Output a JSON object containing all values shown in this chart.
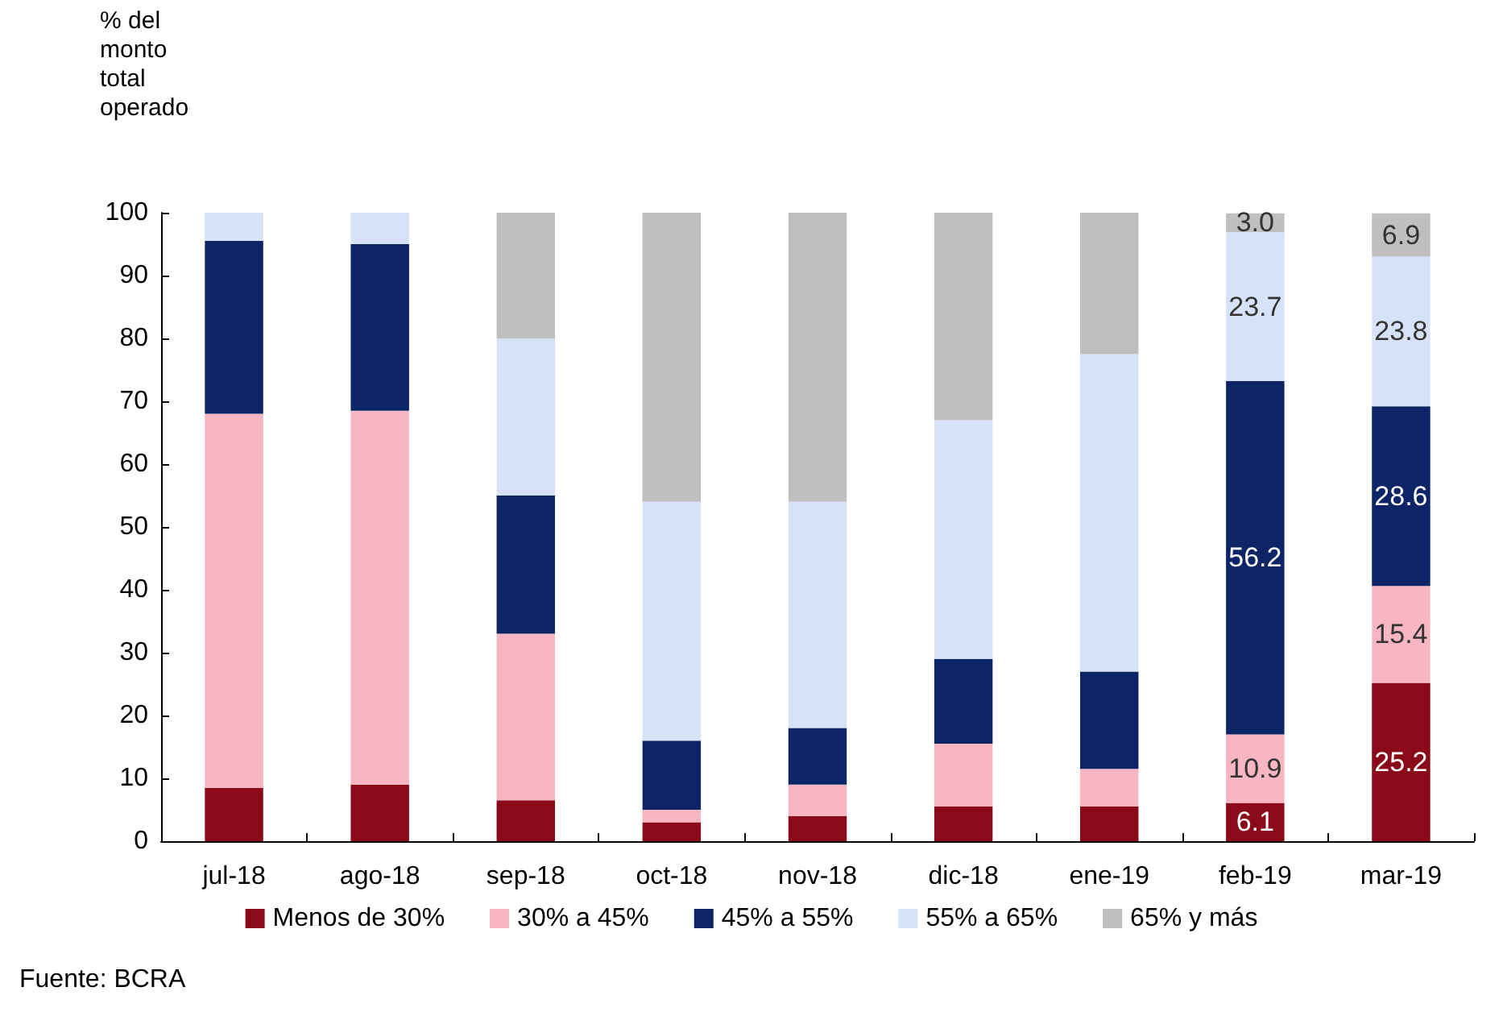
{
  "chart_data": {
    "type": "bar",
    "stacked": true,
    "ylabel": "% del\nmonto\ntotal\noperado",
    "annotations": [
      "Fuente: BCRA"
    ],
    "categories": [
      "jul-18",
      "ago-18",
      "sep-18",
      "oct-18",
      "nov-18",
      "dic-18",
      "ene-19",
      "feb-19",
      "mar-19"
    ],
    "series": [
      {
        "name": "Menos de 30%",
        "color": "#8b0a1a",
        "values": [
          8.5,
          9,
          6.5,
          3,
          4,
          5.5,
          5.5,
          6.1,
          25.2
        ],
        "value_labels": [
          null,
          null,
          null,
          null,
          null,
          null,
          null,
          "6.1",
          "25.2"
        ]
      },
      {
        "name": "30% a 45%",
        "color": "#f7b6c2",
        "values": [
          59.5,
          59.5,
          26.5,
          2,
          5,
          10,
          6,
          10.9,
          15.4
        ],
        "value_labels": [
          null,
          null,
          null,
          null,
          null,
          null,
          null,
          "10.9",
          "15.4"
        ]
      },
      {
        "name": "45% a 55%",
        "color": "#0d2466",
        "values": [
          27.5,
          26.5,
          22,
          11,
          9,
          13.5,
          15.5,
          56.2,
          28.6
        ],
        "value_labels": [
          null,
          null,
          null,
          null,
          null,
          null,
          null,
          "56.2",
          "28.6"
        ]
      },
      {
        "name": "55% a 65%",
        "color": "#d6e2f8",
        "values": [
          4.5,
          5,
          25,
          38,
          36,
          38,
          50.5,
          23.7,
          23.8
        ],
        "value_labels": [
          null,
          null,
          null,
          null,
          null,
          null,
          null,
          "23.7",
          "23.8"
        ]
      },
      {
        "name": "65% y más",
        "color": "#bfbfbf",
        "values": [
          0,
          0,
          20,
          46,
          46,
          33,
          22.5,
          3.0,
          6.9
        ],
        "value_labels": [
          null,
          null,
          null,
          null,
          null,
          null,
          null,
          "3.0",
          "6.9"
        ]
      }
    ],
    "ylim": [
      0,
      100
    ],
    "yticks": [
      0,
      10,
      20,
      30,
      40,
      50,
      60,
      70,
      80,
      90,
      100
    ],
    "grid": false,
    "legend": "bottom"
  }
}
